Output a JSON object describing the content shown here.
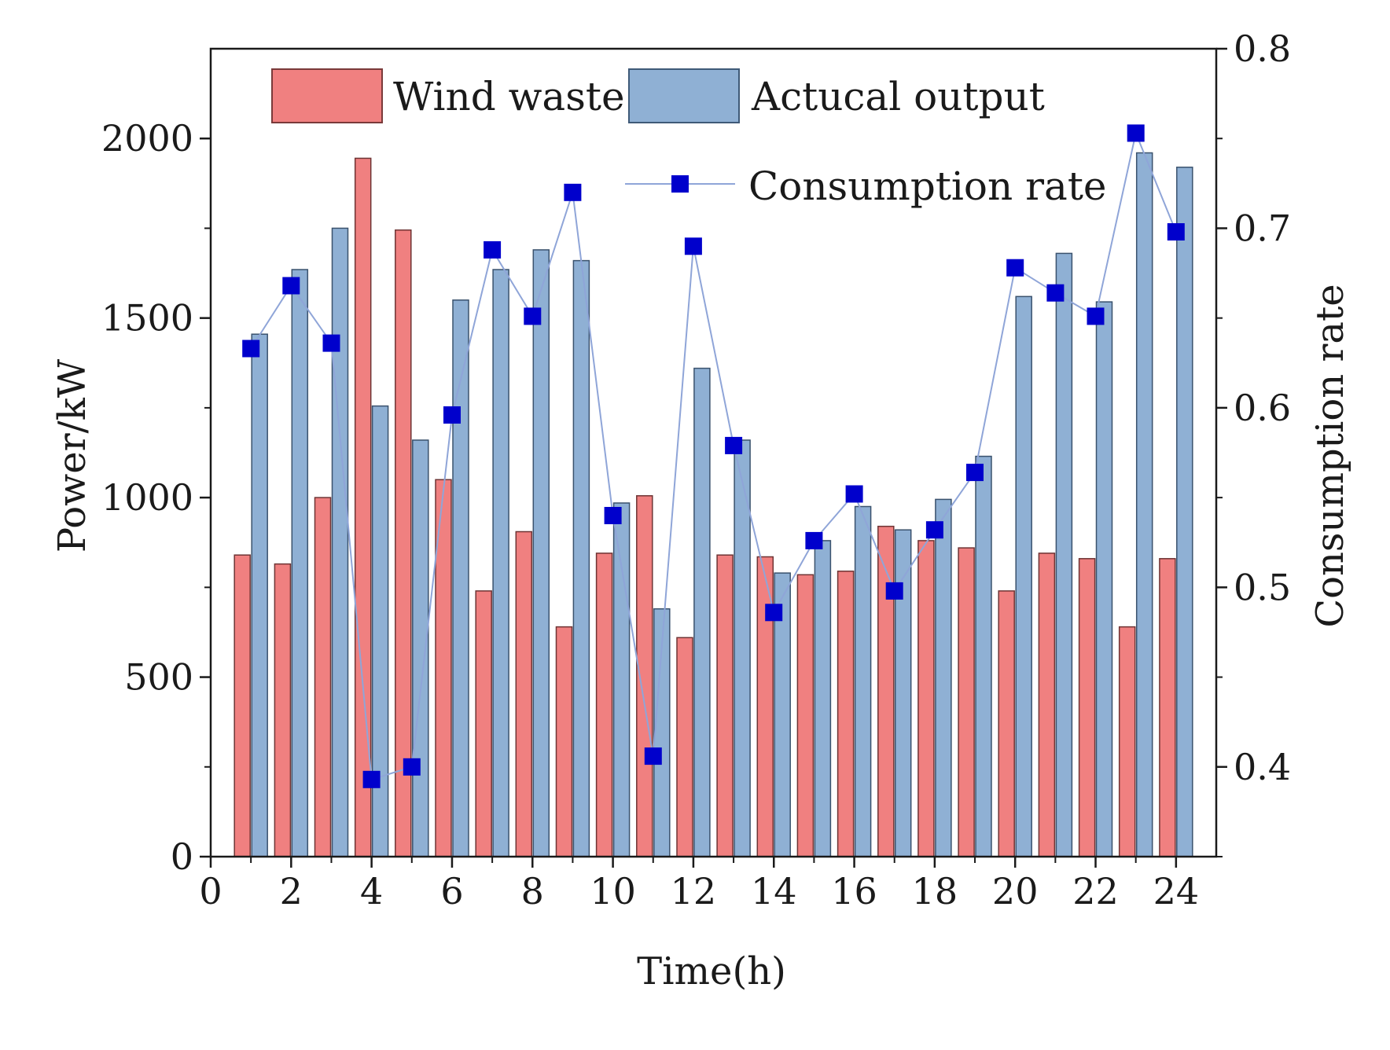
{
  "chart_data": {
    "type": "bar",
    "x_label": "Time(h)",
    "y_label_left": "Power/kW",
    "y_label_right": "Consumption rate",
    "x_range": [
      0,
      25
    ],
    "x_ticks": [
      0,
      2,
      4,
      6,
      8,
      10,
      12,
      14,
      16,
      18,
      20,
      22,
      24
    ],
    "y_left_range": [
      0,
      2250
    ],
    "y_left_ticks": [
      0,
      500,
      1000,
      1500,
      2000
    ],
    "y_right_range": [
      0.35,
      0.8
    ],
    "y_right_ticks": [
      0.4,
      0.5,
      0.6,
      0.7,
      0.8
    ],
    "hours": [
      1,
      2,
      3,
      4,
      5,
      6,
      7,
      8,
      9,
      10,
      11,
      12,
      13,
      14,
      15,
      16,
      17,
      18,
      19,
      20,
      21,
      22,
      23,
      24
    ],
    "series": [
      {
        "name": "Wind waste",
        "kind": "bar",
        "axis": "left",
        "color": "#f08080",
        "values": [
          840,
          815,
          1000,
          1945,
          1745,
          1050,
          740,
          905,
          640,
          845,
          1005,
          610,
          840,
          835,
          785,
          795,
          920,
          880,
          860,
          740,
          845,
          830,
          640,
          830
        ]
      },
      {
        "name": "Actucal output",
        "kind": "bar",
        "axis": "left",
        "color": "#8fb0d4",
        "values": [
          1455,
          1635,
          1750,
          1255,
          1160,
          1550,
          1635,
          1690,
          1660,
          985,
          690,
          1360,
          1160,
          790,
          880,
          975,
          910,
          995,
          1115,
          1560,
          1680,
          1545,
          1960,
          1920
        ]
      },
      {
        "name": "Consumption rate",
        "kind": "line",
        "axis": "right",
        "color": "#0000cc",
        "line_color": "#8fa5d8",
        "values": [
          0.633,
          0.668,
          0.636,
          0.393,
          0.4,
          0.596,
          0.688,
          0.651,
          0.72,
          0.54,
          0.406,
          0.69,
          0.579,
          0.486,
          0.526,
          0.552,
          0.498,
          0.532,
          0.564,
          0.678,
          0.664,
          0.651,
          0.753,
          0.698
        ]
      }
    ],
    "legend": {
      "placement": "top",
      "entries": [
        "Wind waste",
        "Actucal output",
        "Consumption rate"
      ]
    },
    "grid": false
  }
}
